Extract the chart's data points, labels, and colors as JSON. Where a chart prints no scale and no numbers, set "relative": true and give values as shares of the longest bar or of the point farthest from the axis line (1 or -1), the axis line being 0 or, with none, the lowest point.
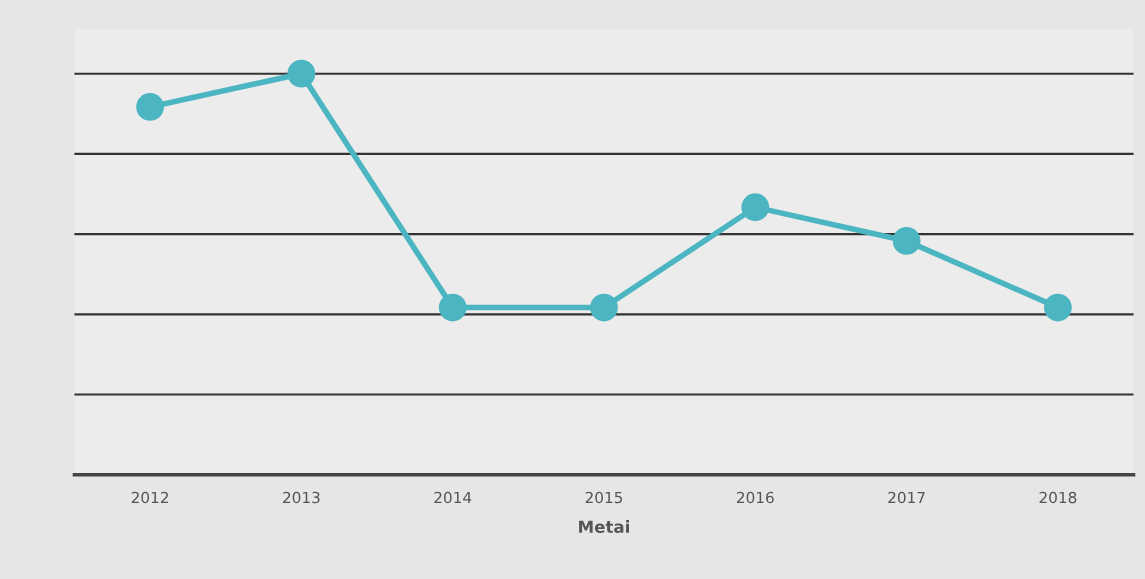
{
  "chart_data": {
    "type": "line",
    "xlabel": "Metai",
    "categories": [
      "2012",
      "2013",
      "2014",
      "2015",
      "2016",
      "2017",
      "2018"
    ],
    "series": [
      {
        "color": "#4bb5c1",
        "values": [
          0.917,
          1,
          0.417,
          0.417,
          0.667,
          0.583,
          0.417
        ]
      }
    ],
    "relative": true,
    "grid": "y",
    "legend": false,
    "marker": "circle",
    "line_style": "solid"
  }
}
